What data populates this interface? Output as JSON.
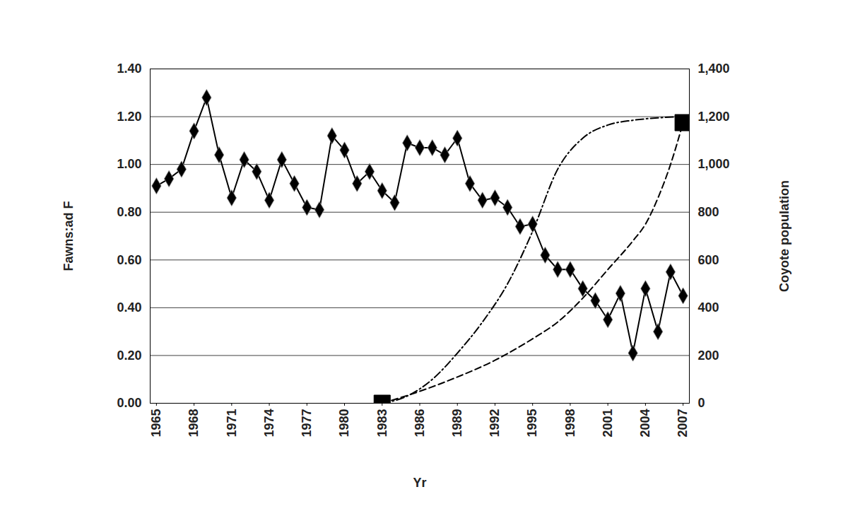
{
  "chart_data": {
    "type": "line",
    "x_label": "Yr",
    "y_label": "Fawns:ad F",
    "y2_label": "Coyote population",
    "xlim": [
      1964.5,
      2007.5
    ],
    "xticks": [
      1965,
      1968,
      1971,
      1974,
      1977,
      1980,
      1983,
      1986,
      1989,
      1992,
      1995,
      1998,
      2001,
      2004,
      2007
    ],
    "ylim": [
      0,
      1.4
    ],
    "yticks": [
      {
        "value": 0,
        "label": "0.00"
      },
      {
        "value": 0.2,
        "label": "0.20"
      },
      {
        "value": 0.4,
        "label": "0.40"
      },
      {
        "value": 0.6,
        "label": "0.60"
      },
      {
        "value": 0.8,
        "label": "0.80"
      },
      {
        "value": 1,
        "label": "1.00"
      },
      {
        "value": 1.2,
        "label": "1.20"
      },
      {
        "value": 1.4,
        "label": "1.40"
      }
    ],
    "y2lim": [
      0,
      1400
    ],
    "y2ticks": [
      0,
      200,
      400,
      600,
      800,
      {
        "value": 1000,
        "label": "1,000"
      },
      {
        "value": 1200,
        "label": "1,200"
      },
      {
        "value": 1400,
        "label": "1,400"
      }
    ],
    "grid": true,
    "series": [
      {
        "type": "line",
        "color": "#000000",
        "marker": "diamond",
        "line_style": "solid",
        "x": [
          1965,
          1966,
          1967,
          1968,
          1969,
          1970,
          1971,
          1972,
          1973,
          1974,
          1975,
          1976,
          1977,
          1978,
          1979,
          1980,
          1981,
          1982,
          1983,
          1984,
          1985,
          1986,
          1987,
          1988,
          1989,
          1990,
          1991,
          1992,
          1993,
          1994,
          1995,
          1996,
          1997,
          1998,
          1999,
          2000,
          2001,
          2002,
          2003,
          2004,
          2005,
          2006,
          2007
        ],
        "values": [
          0.91,
          0.94,
          0.98,
          1.14,
          1.28,
          1.04,
          0.86,
          1.02,
          0.97,
          0.85,
          1.02,
          0.92,
          0.82,
          0.81,
          1.12,
          1.06,
          0.92,
          0.97,
          0.89,
          0.84,
          1.09,
          1.07,
          1.07,
          1.04,
          1.11,
          0.92,
          0.85,
          0.86,
          0.82,
          0.74,
          0.75,
          0.62,
          0.56,
          0.56,
          0.48,
          0.43,
          0.35,
          0.46,
          0.21,
          0.48,
          0.3,
          0.55,
          0.45
        ]
      },
      {
        "type": "line",
        "axis": "y2",
        "color": "#000000",
        "marker": "none",
        "line_style": "dashdot",
        "x": [
          1983,
          1985,
          1987,
          1989,
          1991,
          1993,
          1995,
          1997,
          1999,
          2001,
          2003,
          2005,
          2007
        ],
        "values": [
          0,
          30,
          100,
          210,
          340,
          500,
          720,
          980,
          1110,
          1165,
          1185,
          1195,
          1200
        ]
      },
      {
        "type": "line",
        "axis": "y2",
        "color": "#000000",
        "marker": "none",
        "line_style": "dashed",
        "x": [
          1983,
          1986,
          1989,
          1992,
          1995,
          1997,
          1999,
          2001,
          2003,
          2004,
          2005,
          2006,
          2007
        ],
        "values": [
          0,
          50,
          110,
          180,
          270,
          340,
          440,
          560,
          680,
          750,
          860,
          1000,
          1175
        ]
      },
      {
        "type": "scatter",
        "axis": "y2",
        "color": "#000000",
        "marker": "square",
        "x": [
          1983,
          2007
        ],
        "values": [
          0,
          1175
        ]
      }
    ]
  }
}
